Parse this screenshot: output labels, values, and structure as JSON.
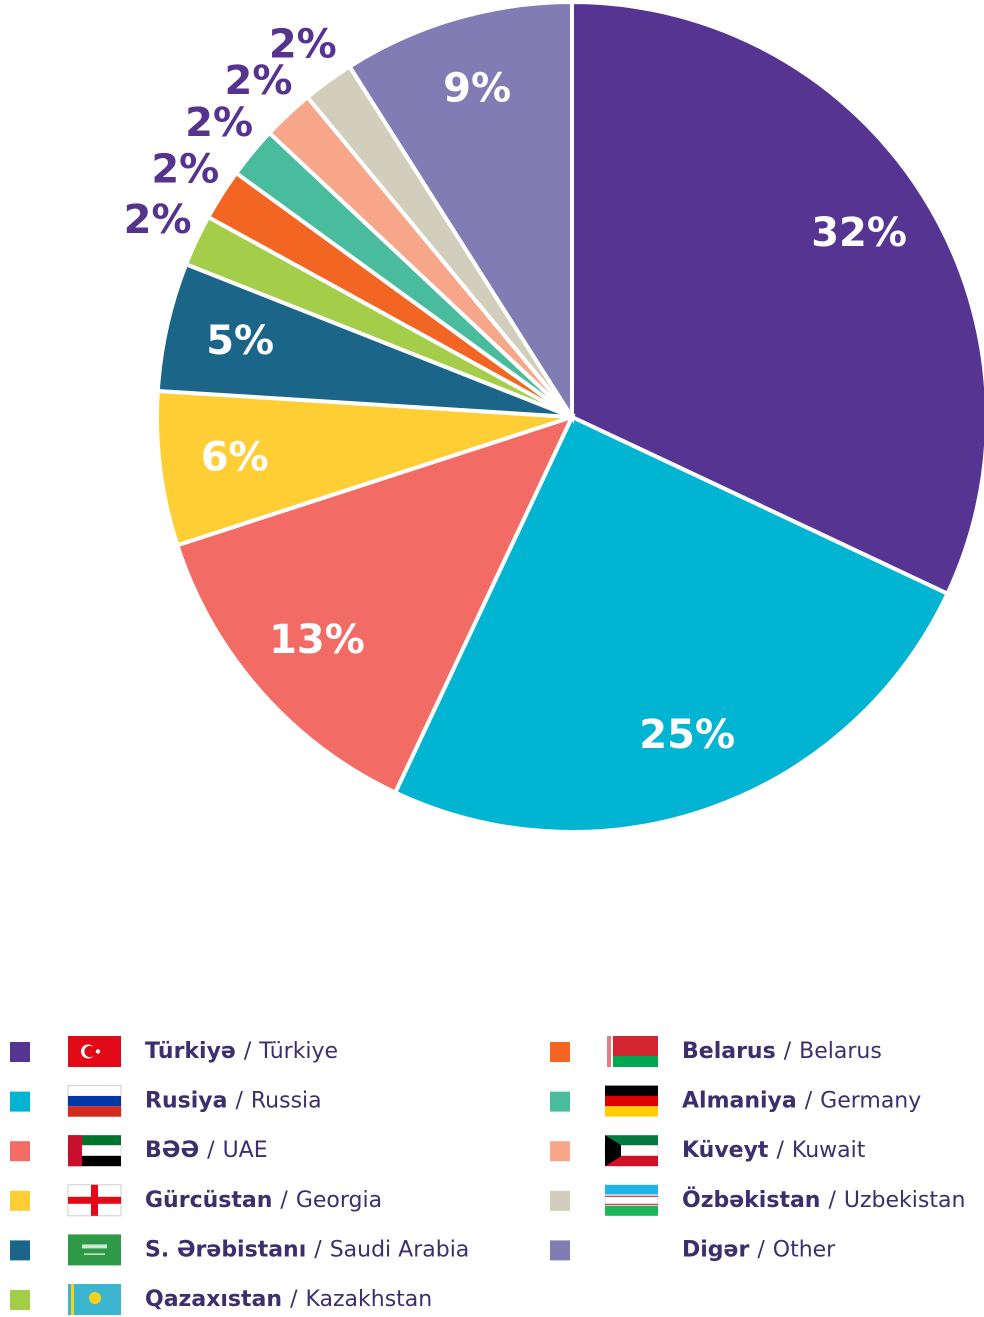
{
  "chart_data": {
    "type": "pie",
    "categories": [
      "Türkiyə",
      "Rusiya",
      "BƏƏ",
      "Gürcüstan",
      "S. Ərəbistanı",
      "Qazaxıstan",
      "Belarus",
      "Almaniya",
      "Küveyt",
      "Özbəkistan",
      "Digər"
    ],
    "categories_en": [
      "Türkiye",
      "Russia",
      "UAE",
      "Georgia",
      "Saudi Arabia",
      "Kazakhstan",
      "Belarus",
      "Germany",
      "Kuwait",
      "Uzbekistan",
      "Other"
    ],
    "legend_separator": "/",
    "values": [
      32,
      25,
      13,
      6,
      5,
      2,
      2,
      2,
      2,
      2,
      9
    ],
    "value_labels": [
      "32%",
      "25%",
      "13%",
      "6%",
      "5%",
      "2%",
      "2%",
      "2%",
      "2%",
      "2%",
      "9%"
    ],
    "colors": [
      "#563592",
      "#00b4d2",
      "#f26b64",
      "#ffcd34",
      "#1b6688",
      "#a4cd4a",
      "#f26522",
      "#49bc9e",
      "#f7a68a",
      "#d1cebb",
      "#827cb5"
    ]
  }
}
